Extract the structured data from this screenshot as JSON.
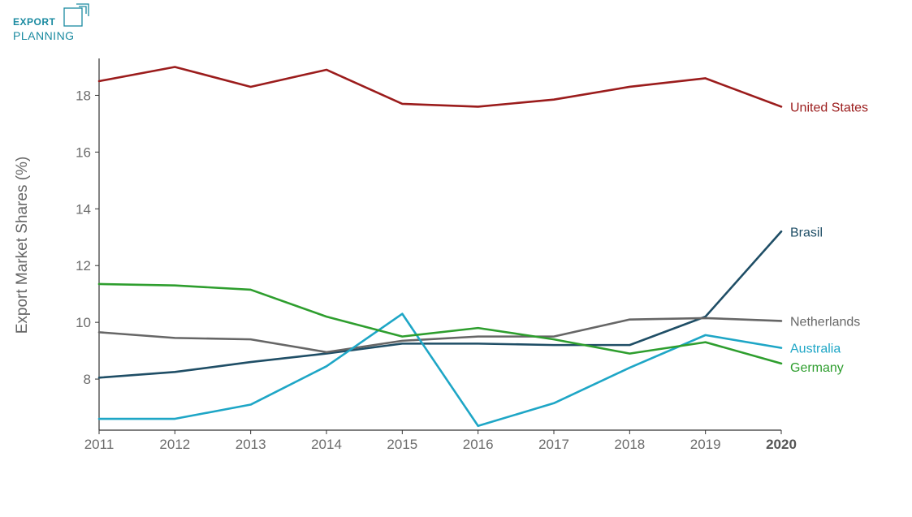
{
  "logo": {
    "line1": "EXPORT",
    "line2": "PLANNING",
    "color": "#1a8aa0"
  },
  "chart_data": {
    "type": "line",
    "ylabel": "Export Market Shares (%)",
    "xlabel": "",
    "x": [
      2011,
      2012,
      2013,
      2014,
      2015,
      2016,
      2017,
      2018,
      2019,
      2020
    ],
    "xticks": [
      "2011",
      "2012",
      "2013",
      "2014",
      "2015",
      "2016",
      "2017",
      "2018",
      "2019",
      "2020"
    ],
    "yticks": [
      "8",
      "10",
      "12",
      "14",
      "16",
      "18"
    ],
    "ylim": [
      6.2,
      19.3
    ],
    "grid": false,
    "legend": "inline labels at line ends",
    "series": [
      {
        "name": "United States",
        "color": "#9b1c1c",
        "values": [
          18.5,
          19.0,
          18.3,
          18.9,
          17.7,
          17.6,
          17.85,
          18.3,
          18.6,
          17.6
        ]
      },
      {
        "name": "Brasil",
        "color": "#1f4e66",
        "values": [
          8.05,
          8.25,
          8.6,
          8.9,
          9.25,
          9.25,
          9.2,
          9.2,
          10.2,
          13.2
        ]
      },
      {
        "name": "Netherlands",
        "color": "#666666",
        "values": [
          9.65,
          9.45,
          9.4,
          8.95,
          9.35,
          9.5,
          9.5,
          10.1,
          10.15,
          10.05
        ]
      },
      {
        "name": "Australia",
        "color": "#1ea6c6",
        "values": [
          6.6,
          6.6,
          7.1,
          8.45,
          10.3,
          6.35,
          7.15,
          8.4,
          9.55,
          9.1
        ]
      },
      {
        "name": "Germany",
        "color": "#2e9e2e",
        "values": [
          11.35,
          11.3,
          11.15,
          10.2,
          9.5,
          9.8,
          9.4,
          8.9,
          9.3,
          8.55
        ]
      }
    ]
  }
}
